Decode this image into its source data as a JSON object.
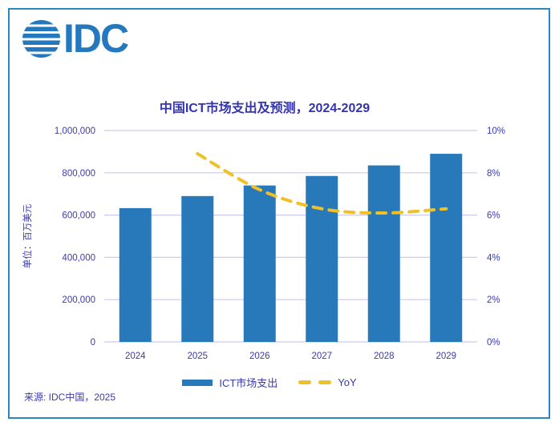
{
  "logo": {
    "text": "IDC",
    "color": "#2478be"
  },
  "chart_data": {
    "type": "bar",
    "title": "中国ICT市场支出及预测，2024-2029",
    "categories": [
      "2024",
      "2025",
      "2026",
      "2027",
      "2028",
      "2029"
    ],
    "series": [
      {
        "name": "ICT市场支出",
        "type": "bar",
        "axis": "left",
        "color": "#2879ba",
        "values": [
          633000,
          690000,
          740000,
          785000,
          835000,
          890000
        ]
      },
      {
        "name": "YoY",
        "type": "dashed-line",
        "axis": "right",
        "color": "#efc028",
        "values": [
          null,
          8.9,
          7.2,
          6.3,
          6.1,
          6.3
        ]
      }
    ],
    "left_axis": {
      "label": "单位：百万美元",
      "min": 0,
      "max": 1000000,
      "ticks": [
        "1,000,000",
        "800,000",
        "600,000",
        "400,000",
        "200,000",
        "0"
      ]
    },
    "right_axis": {
      "min": 0,
      "max": 10,
      "ticks": [
        "10%",
        "8%",
        "6%",
        "4%",
        "2%",
        "0%"
      ]
    },
    "grid": true,
    "legend_position": "bottom"
  },
  "legend": {
    "items": [
      {
        "label": "ICT市场支出",
        "swatch": "bar",
        "color": "#2879ba"
      },
      {
        "label": "YoY",
        "swatch": "dashed-line",
        "color": "#efc028"
      }
    ]
  },
  "source": {
    "text": "来源: IDC中国，2025"
  },
  "colors": {
    "bar": "#2879ba",
    "line": "#efc028",
    "text": "#3b3ba8",
    "title": "#3434ae",
    "grid": "#cccaea",
    "border": "#2e86c1",
    "logo": "#2478be"
  }
}
